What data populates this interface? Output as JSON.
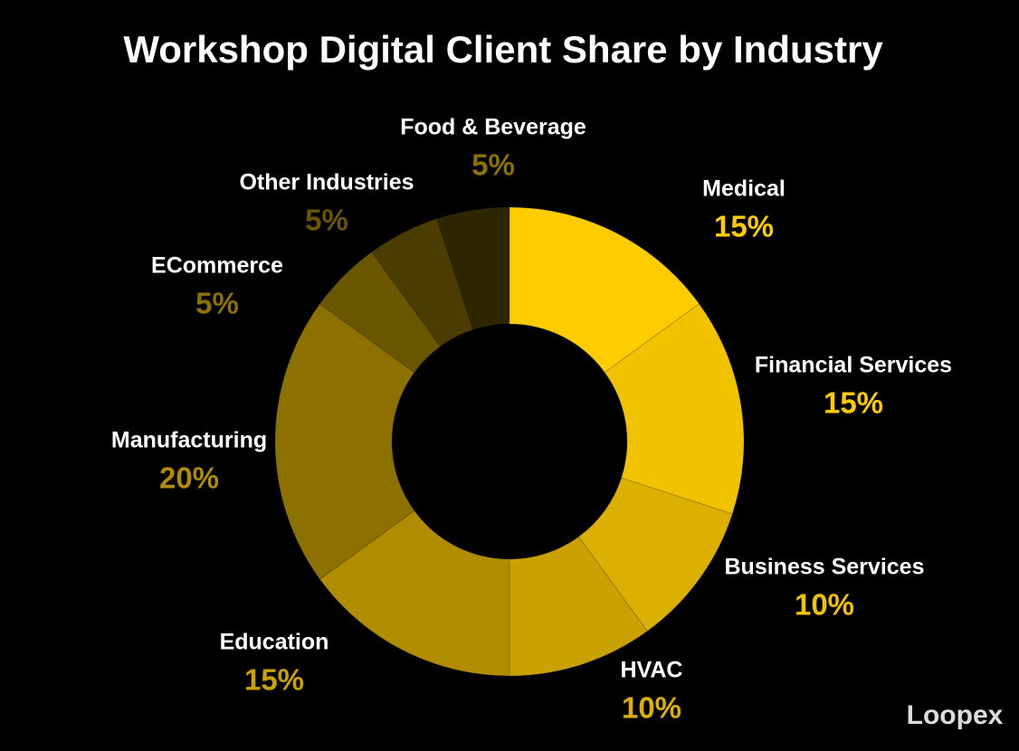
{
  "chart_data": {
    "type": "donut",
    "title": "Workshop Digital Client Share by Industry",
    "categories": [
      "Medical",
      "Financial Services",
      "Business Services",
      "HVAC",
      "Education",
      "Manufacturing",
      "ECommerce",
      "Other Industries",
      "Food & Beverage"
    ],
    "values": [
      15,
      15,
      10,
      10,
      15,
      20,
      5,
      5,
      5
    ],
    "value_labels": [
      "15%",
      "15%",
      "10%",
      "10%",
      "15%",
      "20%",
      "5%",
      "5%",
      "5%"
    ],
    "colors": [
      "#ffcc00",
      "#f0c200",
      "#dcb000",
      "#c9a100",
      "#b08c00",
      "#8c7000",
      "#6b5600",
      "#4b3c00",
      "#2e2600"
    ]
  },
  "logo": "Loopex"
}
